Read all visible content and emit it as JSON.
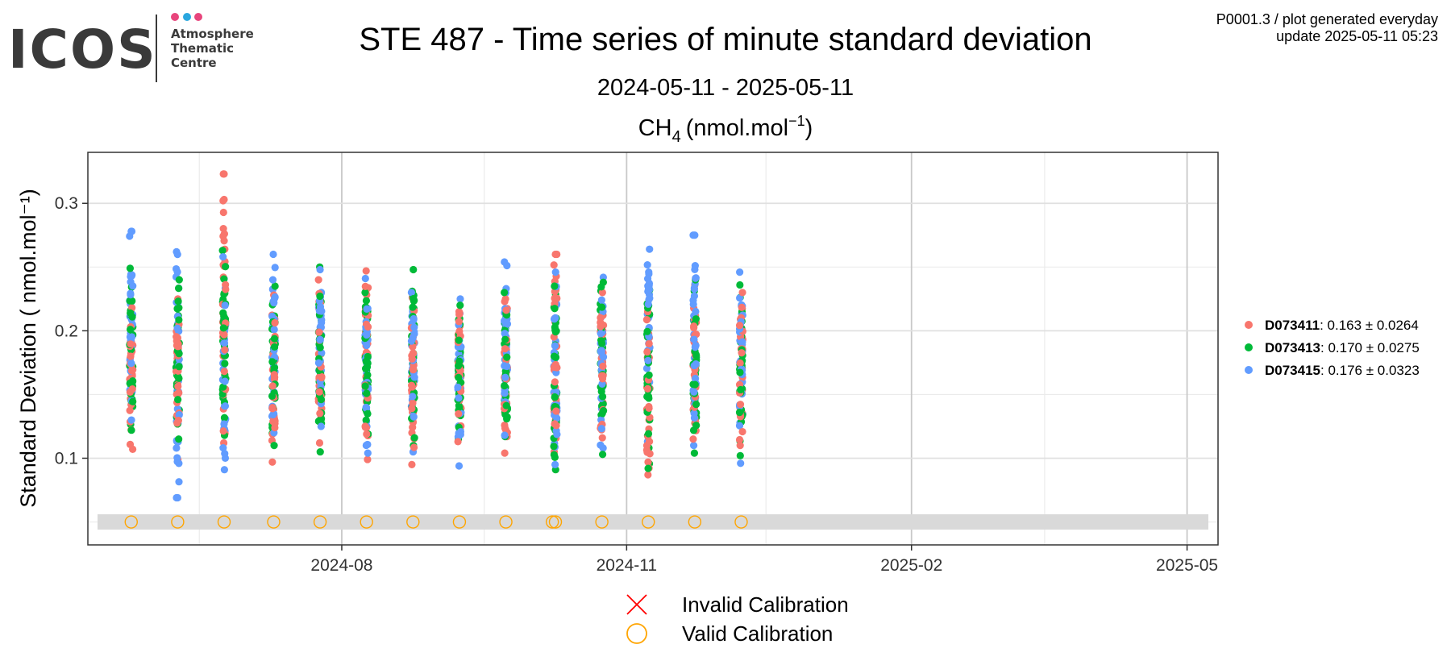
{
  "logo": {
    "brand": "ICOS",
    "line1": "Atmosphere",
    "line2": "Thematic",
    "line3": "Centre",
    "dot_colors": [
      "#e8457c",
      "#2aa7df",
      "#e8457c"
    ]
  },
  "meta": {
    "line1": "P0001.3 / plot generated everyday",
    "line2": "update  2025-05-11 05:23"
  },
  "header": {
    "title": "STE 487 - Time series of minute standard deviation",
    "date_range": "2024-05-11 - 2025-05-11",
    "species_main": "CH",
    "species_sub": "4",
    "unit_pre": "(nmol.mol",
    "unit_sup": "−1",
    "unit_post": ")"
  },
  "chart_data": {
    "type": "scatter",
    "title": "STE 487 - Time series of minute standard deviation",
    "xlabel": "",
    "ylabel": "Standard Deviation ( nmol.mol⁻¹)",
    "x_type": "date",
    "xlim": [
      "2024-05-11",
      "2025-05-11"
    ],
    "ylim": [
      0.032,
      0.34
    ],
    "x_ticks": [
      "2024-08",
      "2024-11",
      "2025-02",
      "2025-05"
    ],
    "y_ticks": [
      0.1,
      0.2,
      0.3
    ],
    "grid": true,
    "legend_position": "right",
    "series": [
      {
        "name": "D073411",
        "stat": "0.163 ± 0.0264",
        "color": "#f8766d",
        "clusters": [
          {
            "date": "2024-05-25",
            "min": 0.107,
            "max": 0.218
          },
          {
            "date": "2024-06-09",
            "min": 0.099,
            "max": 0.225
          },
          {
            "date": "2024-06-24",
            "min": 0.112,
            "max": 0.323,
            "extra": [
              0.303,
              0.323
            ]
          },
          {
            "date": "2024-07-10",
            "min": 0.097,
            "max": 0.228
          },
          {
            "date": "2024-07-25",
            "min": 0.112,
            "max": 0.24
          },
          {
            "date": "2024-08-09",
            "min": 0.099,
            "max": 0.247
          },
          {
            "date": "2024-08-24",
            "min": 0.095,
            "max": 0.226
          },
          {
            "date": "2024-09-08",
            "min": 0.113,
            "max": 0.215
          },
          {
            "date": "2024-09-23",
            "min": 0.104,
            "max": 0.225
          },
          {
            "date": "2024-10-09",
            "min": 0.105,
            "max": 0.26,
            "extra": [
              0.26
            ]
          },
          {
            "date": "2024-10-24",
            "min": 0.116,
            "max": 0.23
          },
          {
            "date": "2024-11-08",
            "min": 0.087,
            "max": 0.215
          },
          {
            "date": "2024-11-23",
            "min": 0.115,
            "max": 0.236
          },
          {
            "date": "2024-12-08",
            "min": 0.11,
            "max": 0.23
          }
        ]
      },
      {
        "name": "D073413",
        "stat": "0.170 ± 0.0275",
        "color": "#00ba38",
        "clusters": [
          {
            "date": "2024-05-25",
            "min": 0.122,
            "max": 0.249
          },
          {
            "date": "2024-06-09",
            "min": 0.115,
            "max": 0.24
          },
          {
            "date": "2024-06-24",
            "min": 0.118,
            "max": 0.263
          },
          {
            "date": "2024-07-10",
            "min": 0.11,
            "max": 0.235
          },
          {
            "date": "2024-07-25",
            "min": 0.105,
            "max": 0.25
          },
          {
            "date": "2024-08-09",
            "min": 0.119,
            "max": 0.23
          },
          {
            "date": "2024-08-24",
            "min": 0.11,
            "max": 0.248
          },
          {
            "date": "2024-09-08",
            "min": 0.115,
            "max": 0.22
          },
          {
            "date": "2024-09-23",
            "min": 0.117,
            "max": 0.23
          },
          {
            "date": "2024-10-09",
            "min": 0.091,
            "max": 0.235
          },
          {
            "date": "2024-10-24",
            "min": 0.103,
            "max": 0.238
          },
          {
            "date": "2024-11-08",
            "min": 0.092,
            "max": 0.232
          },
          {
            "date": "2024-11-23",
            "min": 0.104,
            "max": 0.24
          },
          {
            "date": "2024-12-08",
            "min": 0.102,
            "max": 0.236
          }
        ]
      },
      {
        "name": "D073415",
        "stat": "0.176 ± 0.0323",
        "color": "#619cff",
        "clusters": [
          {
            "date": "2024-05-25",
            "min": 0.13,
            "max": 0.278,
            "extra": [
              0.278
            ]
          },
          {
            "date": "2024-06-09",
            "min": 0.069,
            "max": 0.262,
            "extra": [
              0.069
            ]
          },
          {
            "date": "2024-06-24",
            "min": 0.091,
            "max": 0.258
          },
          {
            "date": "2024-07-10",
            "min": 0.12,
            "max": 0.26
          },
          {
            "date": "2024-07-25",
            "min": 0.125,
            "max": 0.248
          },
          {
            "date": "2024-08-09",
            "min": 0.104,
            "max": 0.241
          },
          {
            "date": "2024-08-24",
            "min": 0.105,
            "max": 0.23
          },
          {
            "date": "2024-09-08",
            "min": 0.094,
            "max": 0.225
          },
          {
            "date": "2024-09-23",
            "min": 0.118,
            "max": 0.254
          },
          {
            "date": "2024-10-09",
            "min": 0.095,
            "max": 0.246
          },
          {
            "date": "2024-10-24",
            "min": 0.108,
            "max": 0.242
          },
          {
            "date": "2024-11-08",
            "min": 0.113,
            "max": 0.264
          },
          {
            "date": "2024-11-23",
            "min": 0.11,
            "max": 0.275,
            "extra": [
              0.275
            ]
          },
          {
            "date": "2024-12-08",
            "min": 0.096,
            "max": 0.246
          }
        ]
      }
    ],
    "calibrations": {
      "band": [
        0.044,
        0.056
      ],
      "band_color": "#d9d9d9",
      "y": 0.05,
      "valid_color": "#ffa500",
      "valid_dates": [
        "2024-05-25",
        "2024-06-09",
        "2024-06-24",
        "2024-07-10",
        "2024-07-25",
        "2024-08-09",
        "2024-08-24",
        "2024-09-08",
        "2024-09-23",
        "2024-10-08",
        "2024-10-09",
        "2024-10-24",
        "2024-11-08",
        "2024-11-23",
        "2024-12-08"
      ],
      "invalid_dates": [],
      "invalid_color": "#ff0000"
    },
    "bottom_legend": [
      {
        "symbol": "cross",
        "label": "Invalid Calibration"
      },
      {
        "symbol": "circle",
        "label": "Valid Calibration"
      }
    ]
  }
}
